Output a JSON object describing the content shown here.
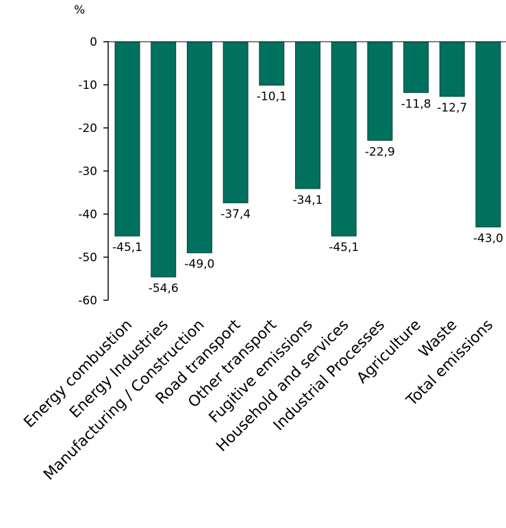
{
  "chart_data": {
    "type": "bar",
    "title": "",
    "xlabel": "",
    "ylabel": "%",
    "ylim": [
      -60,
      0
    ],
    "yticks": [
      0,
      -10,
      -20,
      -30,
      -40,
      -50,
      -60
    ],
    "grid": false,
    "legend": "none",
    "bar_color": "#00705f",
    "categories": [
      "Energy combustion",
      "Energy Industries",
      "Manufacturing / Construction",
      "Road transport",
      "Other transport",
      "Fugitive emissions",
      "Household and services",
      "Industrial Processes",
      "Agriculture",
      "Waste",
      "Total emissions"
    ],
    "values": [
      -45.1,
      -54.6,
      -49.0,
      -37.4,
      -10.1,
      -34.1,
      -45.1,
      -22.9,
      -11.8,
      -12.7,
      -43.0
    ],
    "data_labels": [
      "-45,1",
      "-54,6",
      "-49,0",
      "-37,4",
      "-10,1",
      "-34,1",
      "-45,1",
      "-22,9",
      "-11,8",
      "-12,7",
      "-43,0"
    ]
  }
}
